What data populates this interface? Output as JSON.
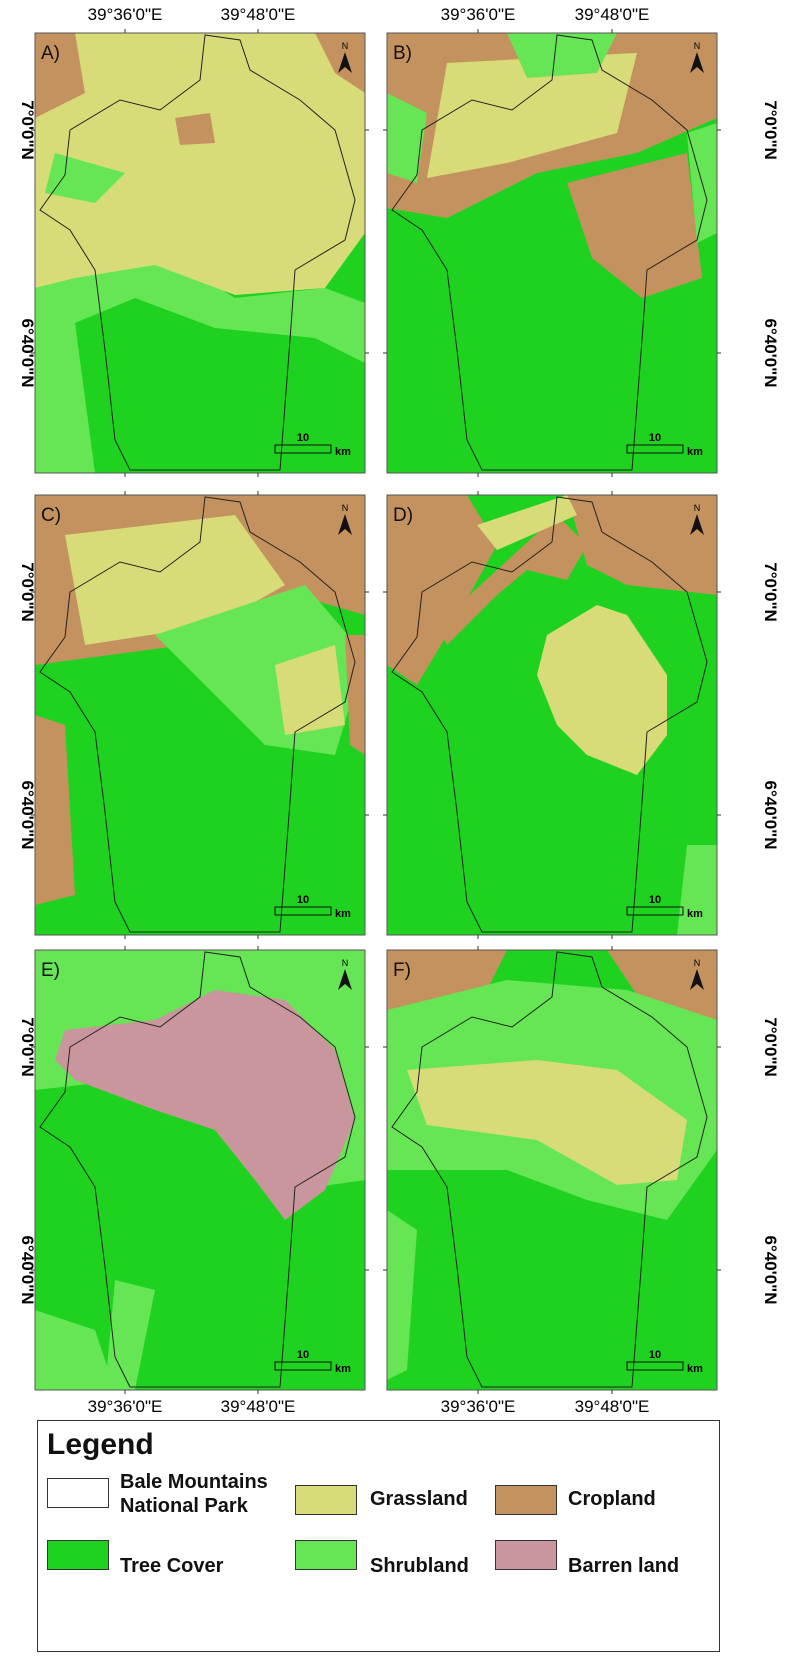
{
  "panels": [
    {
      "label": "A)",
      "scale_label": "10",
      "scale_unit": "km"
    },
    {
      "label": "B)",
      "scale_label": "10",
      "scale_unit": "km"
    },
    {
      "label": "C)",
      "scale_label": "10",
      "scale_unit": "km"
    },
    {
      "label": "D)",
      "scale_label": "10",
      "scale_unit": "km"
    },
    {
      "label": "E)",
      "scale_label": "10",
      "scale_unit": "km"
    },
    {
      "label": "F)",
      "scale_label": "10",
      "scale_unit": "km"
    }
  ],
  "north_label": "N",
  "lon_labels": [
    "39°36'0\"E",
    "39°48'0\"E"
  ],
  "lat_labels": [
    "7°0'0\"N",
    "6°40'0\"N"
  ],
  "legend": {
    "title": "Legend",
    "items": [
      {
        "label": "Bale Mountains National Park",
        "color": "#ffffff"
      },
      {
        "label": "Grassland",
        "color": "#d8dc78"
      },
      {
        "label": "Cropland",
        "color": "#c4925f"
      },
      {
        "label": "Tree Cover",
        "color": "#1fd21f"
      },
      {
        "label": "Shrubland",
        "color": "#66e654"
      },
      {
        "label": "Barren land",
        "color": "#c8969c"
      }
    ]
  }
}
